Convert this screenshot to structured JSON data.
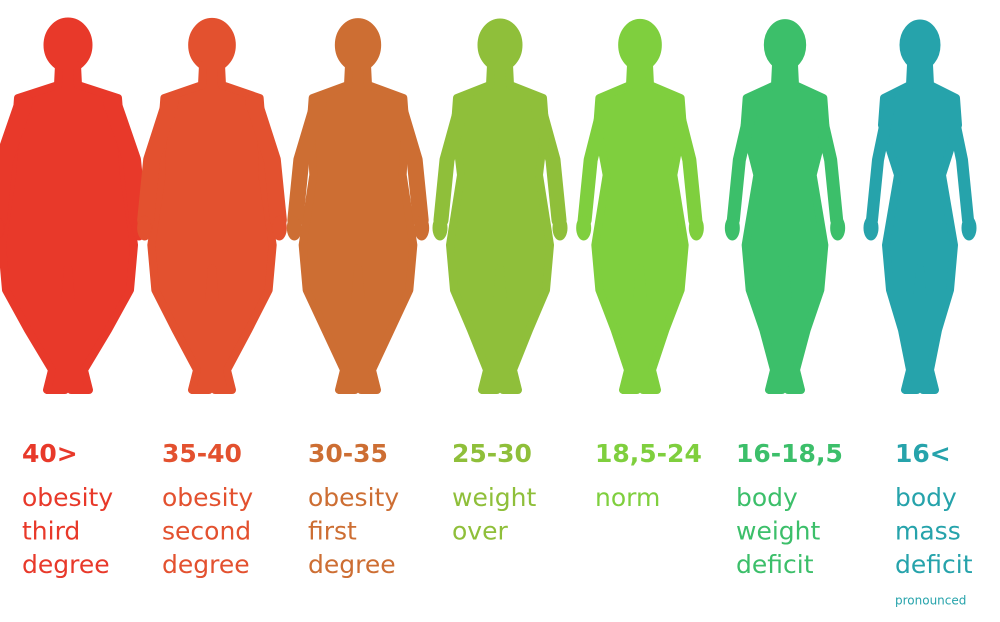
{
  "figures": [
    {
      "range": "40>",
      "lines": [
        "obesity",
        "third",
        "degree"
      ],
      "color": "#e8392a"
    },
    {
      "range": "35-40",
      "lines": [
        "obesity",
        "second",
        "degree"
      ],
      "color": "#e3512f"
    },
    {
      "range": "30-35",
      "lines": [
        "obesity",
        "first",
        "degree"
      ],
      "color": "#cd6e33"
    },
    {
      "range": "25-30",
      "lines": [
        "weight",
        "over"
      ],
      "color": "#8fbf3a"
    },
    {
      "range": "18,5-24",
      "lines": [
        "norm"
      ],
      "color": "#7fcf3e"
    },
    {
      "range": "16-18,5",
      "lines": [
        "body",
        "weight",
        "deficit"
      ],
      "color": "#3cbf6a"
    },
    {
      "range": "16<",
      "lines": [
        "body",
        "mass",
        "deficit"
      ],
      "note": "pronounced",
      "color": "#26a3ab"
    }
  ]
}
